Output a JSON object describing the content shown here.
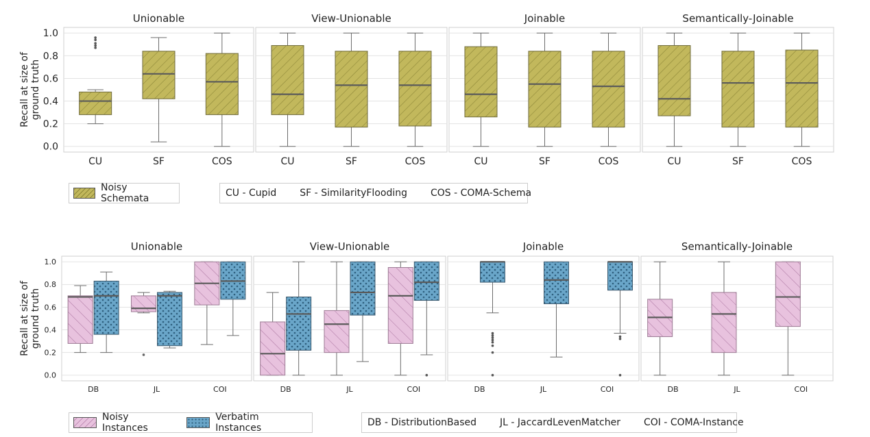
{
  "chart_data": [
    {
      "type": "box",
      "ylabel": "Recall at size of\nground truth",
      "ylim": [
        -0.05,
        1.05
      ],
      "yticks": [
        "0.0",
        "0.2",
        "0.4",
        "0.6",
        "0.8",
        "1.0"
      ],
      "categories": [
        "CU",
        "SF",
        "COS"
      ],
      "series_names": [
        "Noisy Schemata"
      ],
      "panels": [
        {
          "title": "Unionable",
          "boxes": [
            {
              "category": "CU",
              "series": "Noisy Schemata",
              "whislo": 0.2,
              "q1": 0.28,
              "med": 0.4,
              "q3": 0.48,
              "whishi": 0.5,
              "fliers": [
                0.87,
                0.89,
                0.91,
                0.94,
                0.96
              ]
            },
            {
              "category": "SF",
              "series": "Noisy Schemata",
              "whislo": 0.04,
              "q1": 0.42,
              "med": 0.64,
              "q3": 0.84,
              "whishi": 0.96,
              "fliers": []
            },
            {
              "category": "COS",
              "series": "Noisy Schemata",
              "whislo": 0.0,
              "q1": 0.28,
              "med": 0.57,
              "q3": 0.82,
              "whishi": 1.0,
              "fliers": []
            }
          ]
        },
        {
          "title": "View-Unionable",
          "boxes": [
            {
              "category": "CU",
              "series": "Noisy Schemata",
              "whislo": 0.0,
              "q1": 0.28,
              "med": 0.46,
              "q3": 0.89,
              "whishi": 1.0,
              "fliers": []
            },
            {
              "category": "SF",
              "series": "Noisy Schemata",
              "whislo": 0.0,
              "q1": 0.17,
              "med": 0.54,
              "q3": 0.84,
              "whishi": 1.0,
              "fliers": []
            },
            {
              "category": "COS",
              "series": "Noisy Schemata",
              "whislo": 0.0,
              "q1": 0.18,
              "med": 0.54,
              "q3": 0.84,
              "whishi": 1.0,
              "fliers": []
            }
          ]
        },
        {
          "title": "Joinable",
          "boxes": [
            {
              "category": "CU",
              "series": "Noisy Schemata",
              "whislo": 0.0,
              "q1": 0.26,
              "med": 0.46,
              "q3": 0.88,
              "whishi": 1.0,
              "fliers": []
            },
            {
              "category": "SF",
              "series": "Noisy Schemata",
              "whislo": 0.0,
              "q1": 0.17,
              "med": 0.55,
              "q3": 0.84,
              "whishi": 1.0,
              "fliers": []
            },
            {
              "category": "COS",
              "series": "Noisy Schemata",
              "whislo": 0.0,
              "q1": 0.17,
              "med": 0.53,
              "q3": 0.84,
              "whishi": 1.0,
              "fliers": []
            }
          ]
        },
        {
          "title": "Semantically-Joinable",
          "boxes": [
            {
              "category": "CU",
              "series": "Noisy Schemata",
              "whislo": 0.0,
              "q1": 0.27,
              "med": 0.42,
              "q3": 0.89,
              "whishi": 1.0,
              "fliers": []
            },
            {
              "category": "SF",
              "series": "Noisy Schemata",
              "whislo": 0.0,
              "q1": 0.17,
              "med": 0.56,
              "q3": 0.84,
              "whishi": 1.0,
              "fliers": []
            },
            {
              "category": "COS",
              "series": "Noisy Schemata",
              "whislo": 0.0,
              "q1": 0.17,
              "med": 0.56,
              "q3": 0.85,
              "whishi": 1.0,
              "fliers": []
            }
          ]
        }
      ]
    },
    {
      "type": "box",
      "ylabel": "Recall at size of\nground truth",
      "ylim": [
        -0.05,
        1.05
      ],
      "yticks": [
        "0.0",
        "0.2",
        "0.4",
        "0.6",
        "0.8",
        "1.0"
      ],
      "categories": [
        "DB",
        "JL",
        "COI"
      ],
      "series_names": [
        "Noisy Instances",
        "Verbatim Instances"
      ],
      "panels": [
        {
          "title": "Unionable",
          "boxes": [
            {
              "category": "DB",
              "series": "Noisy Instances",
              "whislo": 0.2,
              "q1": 0.28,
              "med": 0.69,
              "q3": 0.7,
              "whishi": 0.79,
              "fliers": []
            },
            {
              "category": "DB",
              "series": "Verbatim Instances",
              "whislo": 0.2,
              "q1": 0.36,
              "med": 0.7,
              "q3": 0.83,
              "whishi": 0.91,
              "fliers": []
            },
            {
              "category": "JL",
              "series": "Noisy Instances",
              "whislo": 0.55,
              "q1": 0.56,
              "med": 0.59,
              "q3": 0.7,
              "whishi": 0.73,
              "fliers": [
                0.18
              ]
            },
            {
              "category": "JL",
              "series": "Verbatim Instances",
              "whislo": 0.24,
              "q1": 0.26,
              "med": 0.7,
              "q3": 0.73,
              "whishi": 0.74,
              "fliers": []
            },
            {
              "category": "COI",
              "series": "Noisy Instances",
              "whislo": 0.27,
              "q1": 0.62,
              "med": 0.81,
              "q3": 1.0,
              "whishi": 1.0,
              "fliers": []
            },
            {
              "category": "COI",
              "series": "Verbatim Instances",
              "whislo": 0.35,
              "q1": 0.67,
              "med": 0.83,
              "q3": 1.0,
              "whishi": 1.0,
              "fliers": []
            }
          ]
        },
        {
          "title": "View-Unionable",
          "boxes": [
            {
              "category": "DB",
              "series": "Noisy Instances",
              "whislo": 0.0,
              "q1": 0.0,
              "med": 0.19,
              "q3": 0.47,
              "whishi": 0.73,
              "fliers": []
            },
            {
              "category": "DB",
              "series": "Verbatim Instances",
              "whislo": 0.0,
              "q1": 0.22,
              "med": 0.54,
              "q3": 0.69,
              "whishi": 1.0,
              "fliers": []
            },
            {
              "category": "JL",
              "series": "Noisy Instances",
              "whislo": 0.0,
              "q1": 0.2,
              "med": 0.45,
              "q3": 0.57,
              "whishi": 1.0,
              "fliers": []
            },
            {
              "category": "JL",
              "series": "Verbatim Instances",
              "whislo": 0.12,
              "q1": 0.53,
              "med": 0.73,
              "q3": 1.0,
              "whishi": 1.0,
              "fliers": []
            },
            {
              "category": "COI",
              "series": "Noisy Instances",
              "whislo": 0.0,
              "q1": 0.28,
              "med": 0.7,
              "q3": 0.95,
              "whishi": 1.0,
              "fliers": []
            },
            {
              "category": "COI",
              "series": "Verbatim Instances",
              "whislo": 0.18,
              "q1": 0.66,
              "med": 0.82,
              "q3": 1.0,
              "whishi": 1.0,
              "fliers": [
                0.0
              ]
            }
          ]
        },
        {
          "title": "Joinable",
          "boxes": [
            {
              "category": "DB",
              "series": "Verbatim Instances",
              "whislo": 0.55,
              "q1": 0.82,
              "med": 1.0,
              "q3": 1.0,
              "whishi": 1.0,
              "fliers": [
                0.0,
                0.2,
                0.26,
                0.29,
                0.31,
                0.33,
                0.35,
                0.37
              ]
            },
            {
              "category": "JL",
              "series": "Verbatim Instances",
              "whislo": 0.16,
              "q1": 0.63,
              "med": 0.84,
              "q3": 1.0,
              "whishi": 1.0,
              "fliers": []
            },
            {
              "category": "COI",
              "series": "Verbatim Instances",
              "whislo": 0.37,
              "q1": 0.75,
              "med": 1.0,
              "q3": 1.0,
              "whishi": 1.0,
              "fliers": [
                0.0,
                0.32,
                0.34
              ]
            }
          ]
        },
        {
          "title": "Semantically-Joinable",
          "boxes": [
            {
              "category": "DB",
              "series": "Noisy Instances",
              "whislo": 0.0,
              "q1": 0.34,
              "med": 0.51,
              "q3": 0.67,
              "whishi": 1.0,
              "fliers": []
            },
            {
              "category": "JL",
              "series": "Noisy Instances",
              "whislo": 0.0,
              "q1": 0.2,
              "med": 0.54,
              "q3": 0.73,
              "whishi": 1.0,
              "fliers": []
            },
            {
              "category": "COI",
              "series": "Noisy Instances",
              "whislo": 0.0,
              "q1": 0.43,
              "med": 0.69,
              "q3": 1.0,
              "whishi": 1.0,
              "fliers": []
            }
          ]
        }
      ]
    }
  ],
  "legend_top": {
    "entries": [
      {
        "label": "Noisy Schemata",
        "color": "#c2b85c"
      }
    ],
    "abbreviations": [
      "CU - Cupid",
      "SF - SimilarityFlooding",
      "COS - COMA-Schema"
    ]
  },
  "legend_bottom": {
    "entries": [
      {
        "label": "Noisy Instances",
        "color": "#e8c2de"
      },
      {
        "label": "Verbatim Instances",
        "color": "#6aa6c9"
      }
    ],
    "abbreviations": [
      "DB - DistributionBased",
      "JL - JaccardLevenMatcher",
      "COI - COMA-Instance"
    ]
  },
  "colors": {
    "Noisy Schemata": "#c2b85c",
    "Noisy Instances": "#e8c2de",
    "Verbatim Instances": "#6aa6c9",
    "grid": "#e3e3e3",
    "median": "#5a5a5a"
  }
}
